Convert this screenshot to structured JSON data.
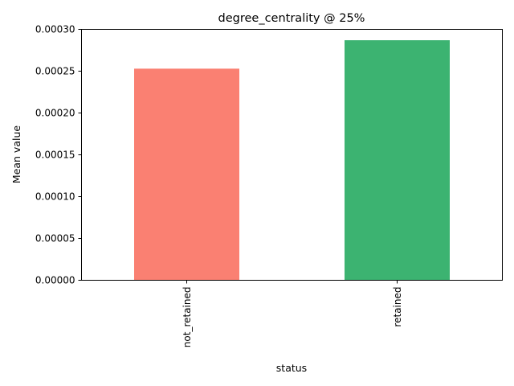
{
  "chart_data": {
    "type": "bar",
    "title": "degree_centrality @ 25%",
    "xlabel": "status",
    "ylabel": "Mean value",
    "categories": [
      "not_retained",
      "retained"
    ],
    "values": [
      0.000253,
      0.000287
    ],
    "bar_colors": [
      "#fa8072",
      "#3cb371"
    ],
    "ylim": [
      0,
      0.0003
    ],
    "yticks": [
      0.0,
      5e-05,
      0.0001,
      0.00015,
      0.0002,
      0.00025,
      0.0003
    ],
    "ytick_labels": [
      "0.00000",
      "0.00005",
      "0.00010",
      "0.00015",
      "0.00020",
      "0.00025",
      "0.00030"
    ],
    "grid": false,
    "legend": "none",
    "xtick_rotation": "vertical"
  }
}
